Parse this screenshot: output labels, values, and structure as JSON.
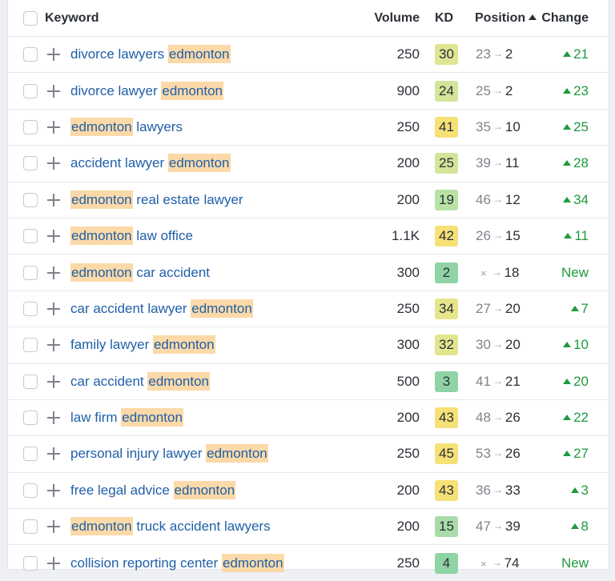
{
  "header": {
    "keyword": "Keyword",
    "volume": "Volume",
    "kd": "KD",
    "position": "Position",
    "change": "Change"
  },
  "highlight_term": "edmonton",
  "kd_colors": {
    "green_dark": "#8fd3a6",
    "green_light": "#b9e2a6",
    "yellow_green": "#dfe592",
    "yellow": "#f6e177"
  },
  "rows": [
    {
      "kw_before": "divorce lawyers ",
      "kw_highlight": "edmonton",
      "kw_after": "",
      "volume": "250",
      "kd": "30",
      "kd_color": "#dfe592",
      "pos_from": "23",
      "pos_to": "2",
      "change": "21",
      "change_up": true
    },
    {
      "kw_before": "divorce lawyer ",
      "kw_highlight": "edmonton",
      "kw_after": "",
      "volume": "900",
      "kd": "24",
      "kd_color": "#d4e59b",
      "pos_from": "25",
      "pos_to": "2",
      "change": "23",
      "change_up": true
    },
    {
      "kw_before": "",
      "kw_highlight": "edmonton",
      "kw_after": " lawyers",
      "volume": "250",
      "kd": "41",
      "kd_color": "#f6e177",
      "pos_from": "35",
      "pos_to": "10",
      "change": "25",
      "change_up": true
    },
    {
      "kw_before": "accident lawyer ",
      "kw_highlight": "edmonton",
      "kw_after": "",
      "volume": "200",
      "kd": "25",
      "kd_color": "#d4e59b",
      "pos_from": "39",
      "pos_to": "11",
      "change": "28",
      "change_up": true
    },
    {
      "kw_before": "",
      "kw_highlight": "edmonton",
      "kw_after": " real estate lawyer",
      "volume": "200",
      "kd": "19",
      "kd_color": "#b9e2a6",
      "pos_from": "46",
      "pos_to": "12",
      "change": "34",
      "change_up": true
    },
    {
      "kw_before": "",
      "kw_highlight": "edmonton",
      "kw_after": " law office",
      "volume": "1.1K",
      "kd": "42",
      "kd_color": "#f6e177",
      "pos_from": "26",
      "pos_to": "15",
      "change": "11",
      "change_up": true
    },
    {
      "kw_before": "",
      "kw_highlight": "edmonton",
      "kw_after": " car accident",
      "volume": "300",
      "kd": "2",
      "kd_color": "#8fd3a6",
      "pos_from": "×",
      "pos_to": "18",
      "change": "New",
      "change_up": false
    },
    {
      "kw_before": "car accident lawyer ",
      "kw_highlight": "edmonton",
      "kw_after": "",
      "volume": "250",
      "kd": "34",
      "kd_color": "#e6e58c",
      "pos_from": "27",
      "pos_to": "20",
      "change": "7",
      "change_up": true
    },
    {
      "kw_before": "family lawyer ",
      "kw_highlight": "edmonton",
      "kw_after": "",
      "volume": "300",
      "kd": "32",
      "kd_color": "#e3e58e",
      "pos_from": "30",
      "pos_to": "20",
      "change": "10",
      "change_up": true
    },
    {
      "kw_before": "car accident ",
      "kw_highlight": "edmonton",
      "kw_after": "",
      "volume": "500",
      "kd": "3",
      "kd_color": "#8fd3a6",
      "pos_from": "41",
      "pos_to": "21",
      "change": "20",
      "change_up": true
    },
    {
      "kw_before": "law firm ",
      "kw_highlight": "edmonton",
      "kw_after": "",
      "volume": "200",
      "kd": "43",
      "kd_color": "#f6e177",
      "pos_from": "48",
      "pos_to": "26",
      "change": "22",
      "change_up": true
    },
    {
      "kw_before": "personal injury lawyer ",
      "kw_highlight": "edmonton",
      "kw_after": "",
      "volume": "250",
      "kd": "45",
      "kd_color": "#f6e177",
      "pos_from": "53",
      "pos_to": "26",
      "change": "27",
      "change_up": true
    },
    {
      "kw_before": "free legal advice ",
      "kw_highlight": "edmonton",
      "kw_after": "",
      "volume": "200",
      "kd": "43",
      "kd_color": "#f6e177",
      "pos_from": "36",
      "pos_to": "33",
      "change": "3",
      "change_up": true
    },
    {
      "kw_before": "",
      "kw_highlight": "edmonton",
      "kw_after": " truck accident lawyers",
      "volume": "200",
      "kd": "15",
      "kd_color": "#a9dcaa",
      "pos_from": "47",
      "pos_to": "39",
      "change": "8",
      "change_up": true
    },
    {
      "kw_before": "collision reporting center ",
      "kw_highlight": "edmonton",
      "kw_after": "",
      "volume": "250",
      "kd": "4",
      "kd_color": "#8fd3a6",
      "pos_from": "×",
      "pos_to": "74",
      "change": "New",
      "change_up": false
    }
  ]
}
